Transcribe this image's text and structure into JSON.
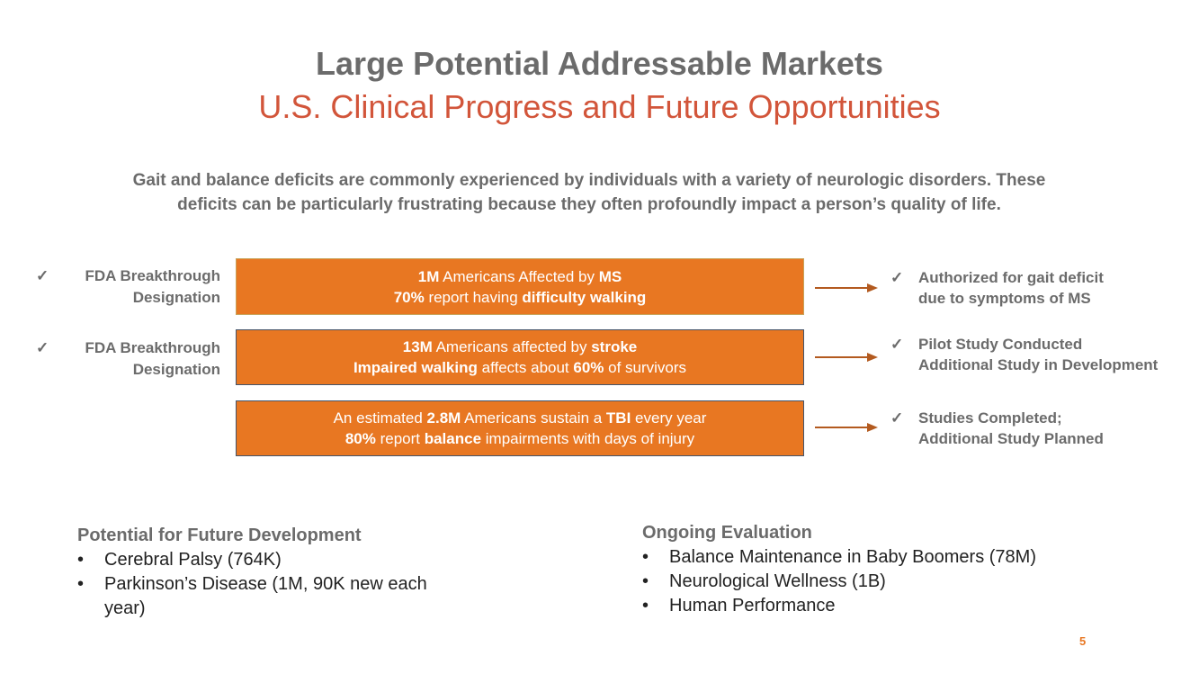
{
  "header": {
    "title": "Large Potential Addressable Markets",
    "subtitle": "U.S. Clinical Progress and Future Opportunities"
  },
  "intro": {
    "line1": "Gait and balance deficits are commonly experienced by individuals with a variety of neurologic disorders. These",
    "line2": "deficits can be particularly frustrating because they often profoundly impact a person’s quality of life."
  },
  "check_glyph": "✓",
  "rows": [
    {
      "left_line1": "FDA Breakthrough",
      "left_line2": "Designation",
      "box_line1": [
        "1M",
        " Americans Affected by ",
        "MS"
      ],
      "box_line2": [
        "70%",
        " report having ",
        "difficulty walking"
      ],
      "right_line1": "Authorized for gait deficit",
      "right_line2": "due to symptoms of MS"
    },
    {
      "left_line1": "FDA Breakthrough",
      "left_line2": "Designation",
      "box_line1": [
        "13M",
        " Americans affected by ",
        "stroke"
      ],
      "box_line2": [
        "Impaired walking",
        " affects about ",
        "60%",
        " of survivors"
      ],
      "right_line1": "Pilot Study Conducted",
      "right_line2": "Additional Study in Development"
    },
    {
      "box_line1": [
        "An estimated ",
        "2.8M",
        " Americans sustain a ",
        "TBI",
        " every year"
      ],
      "box_line2": [
        "80%",
        " report ",
        "balance",
        " impairments with days of injury"
      ],
      "right_line1": "Studies Completed;",
      "right_line2": "Additional Study Planned"
    }
  ],
  "future": {
    "heading": "Potential for Future Development",
    "items": [
      "Cerebral Palsy (764K)",
      "Parkinson’s Disease (1M, 90K new each",
      "year)"
    ]
  },
  "ongoing": {
    "heading": "Ongoing Evaluation",
    "items": [
      "Balance Maintenance in Baby Boomers (78M)",
      "Neurological Wellness (1B)",
      "Human Performance"
    ]
  },
  "page_number": "5",
  "colors": {
    "accent": "#e87722",
    "subtitle": "#d2553a",
    "arrow": "#b35a1f",
    "text_gray": "#6b6b6b"
  }
}
